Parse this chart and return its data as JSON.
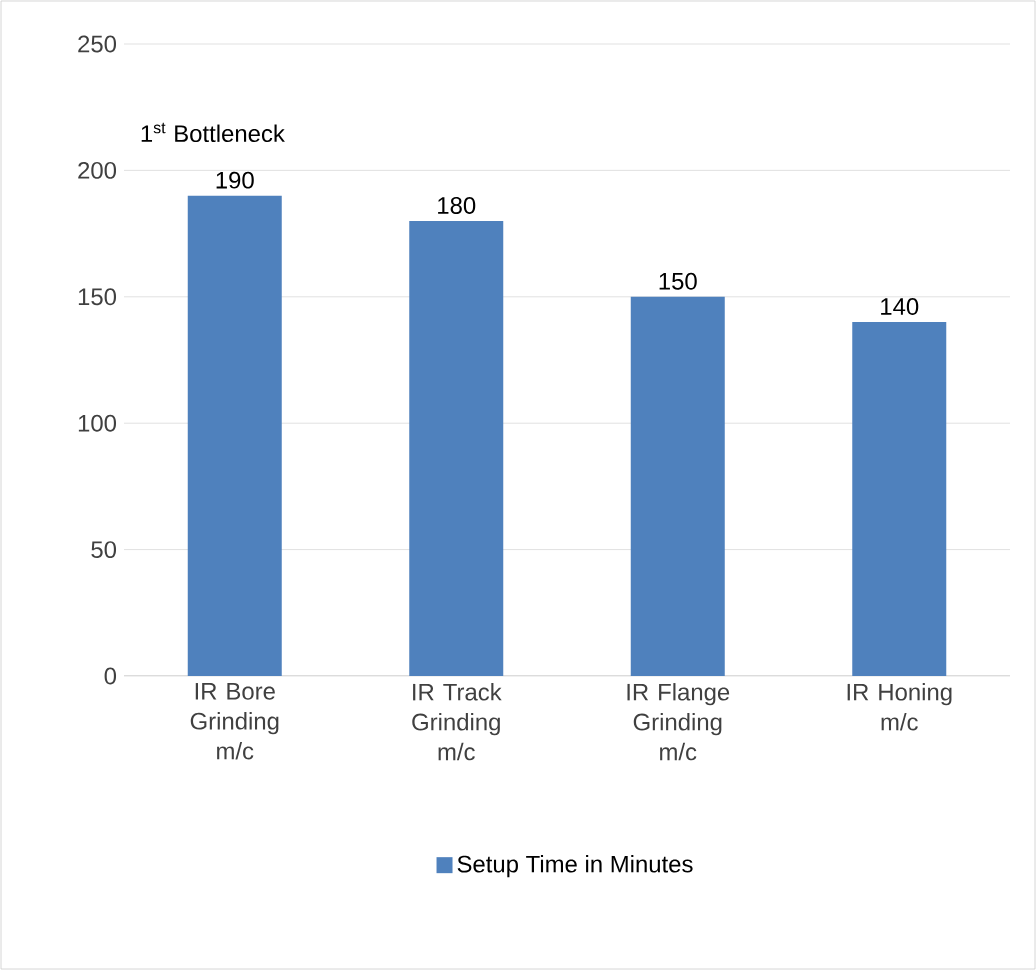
{
  "chart_data": {
    "type": "bar",
    "categories": [
      "IR Bore Grinding m/c",
      "IR Track Grinding m/c",
      "IR Flange Grinding m/c",
      "IR Honing m/c"
    ],
    "series": [
      {
        "name": "Setup Time in Minutes",
        "color": "#4f81bd",
        "values": [
          190,
          180,
          150,
          140
        ]
      }
    ],
    "ylim": [
      0,
      250
    ],
    "yticks": [
      0,
      50,
      100,
      150,
      200,
      250
    ],
    "grid": "y",
    "legend": "bottom",
    "data_labels": true,
    "annotations": [
      "1$^{st}$ Bottleneck"
    ]
  }
}
